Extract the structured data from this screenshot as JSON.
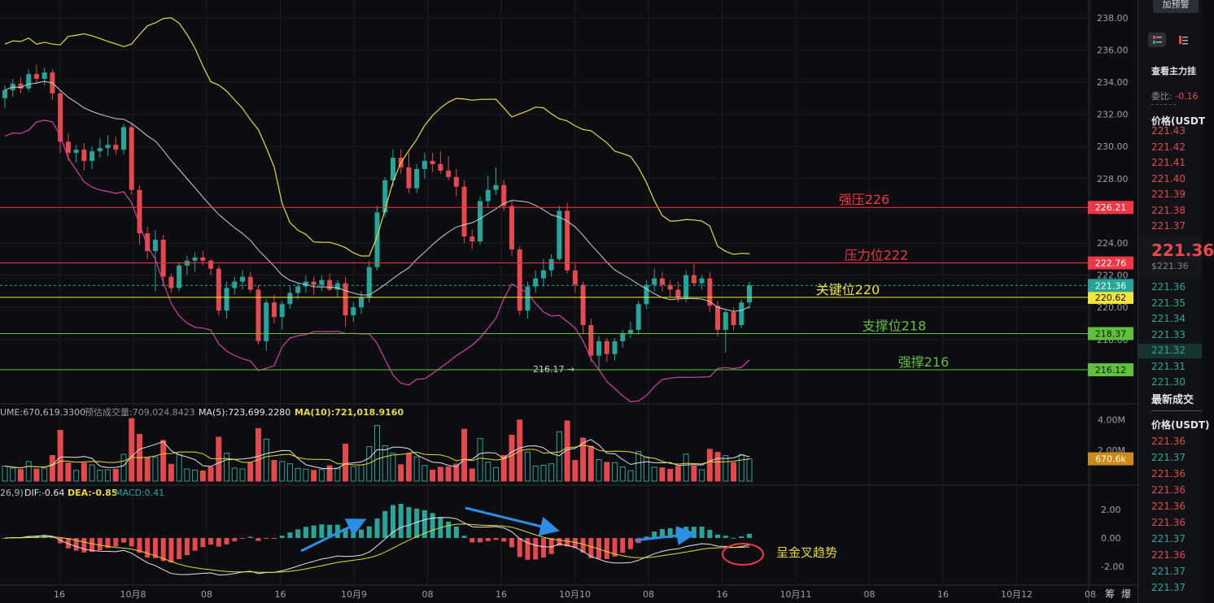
{
  "chart_data": {
    "type": "candlestick",
    "price_axis": {
      "min": 214.0,
      "max": 239.0,
      "ticks": [
        "238.00",
        "236.00",
        "234.00",
        "232.00",
        "230.00",
        "228.00",
        "226.00",
        "224.00",
        "222.00",
        "220.00",
        "218.00"
      ]
    },
    "time_axis": {
      "labels": [
        "16",
        "10月8",
        "08",
        "16",
        "10月9",
        "08",
        "16",
        "10月10",
        "08",
        "16",
        "10月11",
        "08",
        "16",
        "10月12",
        "08"
      ]
    },
    "candles_ohlc": [
      [
        233.0,
        233.8,
        232.4,
        233.5
      ],
      [
        233.5,
        234.2,
        233.1,
        233.9
      ],
      [
        233.9,
        234.3,
        233.3,
        233.6
      ],
      [
        233.6,
        234.8,
        233.4,
        234.5
      ],
      [
        234.5,
        235.1,
        233.9,
        234.2
      ],
      [
        234.2,
        234.9,
        233.8,
        234.6
      ],
      [
        234.6,
        234.8,
        232.9,
        233.3
      ],
      [
        233.3,
        233.5,
        229.6,
        230.3
      ],
      [
        230.3,
        230.8,
        229.1,
        229.6
      ],
      [
        229.6,
        230.1,
        229.0,
        229.8
      ],
      [
        229.8,
        230.2,
        228.5,
        229.1
      ],
      [
        229.1,
        230.0,
        228.6,
        229.7
      ],
      [
        229.7,
        230.5,
        229.3,
        229.9
      ],
      [
        229.9,
        230.7,
        229.4,
        230.1
      ],
      [
        230.1,
        230.6,
        229.5,
        229.8
      ],
      [
        229.8,
        231.4,
        229.5,
        231.2
      ],
      [
        231.2,
        231.4,
        227.0,
        227.3
      ],
      [
        227.3,
        227.6,
        223.9,
        224.6
      ],
      [
        224.6,
        225.0,
        223.0,
        223.5
      ],
      [
        223.5,
        224.8,
        221.0,
        224.2
      ],
      [
        224.2,
        224.5,
        221.3,
        221.9
      ],
      [
        221.9,
        222.1,
        220.9,
        221.2
      ],
      [
        221.2,
        222.8,
        221.0,
        222.6
      ],
      [
        222.6,
        223.2,
        222.0,
        222.9
      ],
      [
        222.9,
        223.4,
        222.2,
        223.1
      ],
      [
        223.1,
        223.5,
        222.6,
        222.9
      ],
      [
        222.9,
        223.0,
        222.0,
        222.4
      ],
      [
        222.4,
        222.6,
        219.5,
        219.8
      ],
      [
        219.8,
        221.6,
        219.3,
        221.2
      ],
      [
        221.2,
        221.9,
        220.8,
        221.6
      ],
      [
        221.6,
        222.3,
        221.1,
        221.9
      ],
      [
        221.9,
        222.2,
        220.9,
        221.1
      ],
      [
        221.1,
        221.4,
        217.7,
        217.9
      ],
      [
        217.9,
        220.5,
        217.3,
        220.3
      ],
      [
        220.3,
        220.8,
        219.0,
        219.4
      ],
      [
        219.4,
        220.4,
        218.6,
        220.2
      ],
      [
        220.2,
        221.3,
        219.9,
        220.9
      ],
      [
        220.9,
        221.5,
        220.5,
        221.3
      ],
      [
        221.3,
        222.0,
        220.9,
        221.6
      ],
      [
        221.6,
        221.9,
        220.8,
        221.4
      ],
      [
        221.4,
        222.0,
        221.0,
        221.7
      ],
      [
        221.7,
        222.1,
        221.0,
        221.1
      ],
      [
        221.1,
        221.7,
        220.6,
        221.5
      ],
      [
        221.5,
        221.9,
        218.8,
        219.5
      ],
      [
        219.5,
        220.3,
        219.1,
        220.0
      ],
      [
        220.0,
        221.0,
        219.6,
        220.6
      ],
      [
        220.6,
        222.9,
        220.3,
        222.5
      ],
      [
        222.5,
        226.3,
        222.3,
        225.9
      ],
      [
        225.9,
        228.1,
        225.6,
        227.9
      ],
      [
        227.9,
        229.8,
        227.5,
        229.3
      ],
      [
        229.3,
        229.8,
        228.3,
        228.7
      ],
      [
        228.7,
        229.6,
        227.1,
        227.4
      ],
      [
        227.4,
        228.9,
        227.1,
        228.6
      ],
      [
        228.6,
        229.6,
        228.0,
        229.1
      ],
      [
        229.1,
        229.6,
        228.4,
        228.9
      ],
      [
        228.9,
        229.7,
        228.3,
        228.5
      ],
      [
        228.5,
        229.4,
        227.9,
        228.1
      ],
      [
        228.1,
        228.6,
        226.9,
        227.5
      ],
      [
        227.5,
        227.9,
        224.0,
        224.4
      ],
      [
        224.4,
        224.8,
        223.6,
        224.1
      ],
      [
        224.1,
        226.9,
        223.9,
        226.6
      ],
      [
        226.6,
        228.2,
        226.2,
        227.3
      ],
      [
        227.3,
        228.7,
        227.0,
        227.6
      ],
      [
        227.6,
        227.9,
        226.0,
        226.3
      ],
      [
        226.3,
        226.6,
        223.2,
        223.6
      ],
      [
        223.6,
        223.8,
        219.5,
        219.8
      ],
      [
        219.8,
        221.6,
        219.3,
        221.3
      ],
      [
        221.3,
        222.3,
        220.9,
        221.8
      ],
      [
        221.8,
        223.0,
        221.3,
        222.3
      ],
      [
        222.3,
        223.3,
        221.9,
        223.0
      ],
      [
        223.0,
        226.3,
        222.9,
        226.0
      ],
      [
        226.0,
        226.5,
        222.1,
        222.3
      ],
      [
        222.3,
        222.7,
        220.9,
        221.4
      ],
      [
        221.4,
        221.6,
        218.4,
        218.9
      ],
      [
        218.9,
        219.3,
        216.6,
        217.0
      ],
      [
        217.0,
        218.2,
        216.1,
        217.9
      ],
      [
        217.9,
        218.1,
        216.6,
        217.1
      ],
      [
        217.1,
        218.1,
        216.7,
        217.9
      ],
      [
        217.9,
        218.6,
        217.5,
        218.4
      ],
      [
        218.4,
        219.1,
        218.1,
        218.6
      ],
      [
        218.6,
        220.4,
        218.3,
        220.2
      ],
      [
        220.2,
        221.7,
        219.9,
        221.4
      ],
      [
        221.4,
        222.4,
        221.0,
        221.8
      ],
      [
        221.8,
        222.2,
        221.0,
        221.4
      ],
      [
        221.4,
        221.7,
        220.6,
        221.1
      ],
      [
        221.1,
        221.6,
        220.3,
        220.6
      ],
      [
        220.6,
        222.3,
        220.3,
        222.0
      ],
      [
        222.0,
        222.7,
        221.3,
        221.5
      ],
      [
        221.5,
        222.0,
        221.1,
        221.8
      ],
      [
        221.8,
        222.2,
        219.7,
        220.1
      ],
      [
        220.1,
        220.4,
        218.2,
        218.6
      ],
      [
        218.6,
        219.9,
        217.2,
        219.7
      ],
      [
        219.7,
        220.0,
        218.6,
        218.9
      ],
      [
        218.9,
        220.5,
        218.7,
        220.3
      ],
      [
        220.3,
        221.6,
        219.9,
        221.36
      ]
    ],
    "levels": [
      {
        "price": 226.21,
        "label": "强压226",
        "axis_label": "226.21",
        "color": "#f23645"
      },
      {
        "price": 222.76,
        "label": "压力位222",
        "axis_label": "222.76",
        "color": "#f23645"
      },
      {
        "price": 220.62,
        "label": "关键位220",
        "axis_label": "220.62",
        "color": "#f5e53a"
      },
      {
        "price": 218.37,
        "label": "支撑位218",
        "axis_label": "218.37",
        "color": "#5ec13b"
      },
      {
        "price": 216.12,
        "label": "强撑216",
        "axis_label": "216.12",
        "color": "#5ec13b"
      }
    ],
    "current_price": {
      "price": 221.36,
      "axis_label": "221.36",
      "color": "#26a69a"
    },
    "low_annotation": {
      "text": "216.17 →",
      "price": 216.17
    },
    "volume": {
      "header": {
        "volume": "UME:670,619.3300",
        "forecast": "预估成交量:709,024.8423",
        "ma5": "MA(5):723,699.2280",
        "ma10": "MA(10):721,018.9160"
      },
      "ticks": [
        "4.00M",
        "2.00M"
      ],
      "current_label": "670.6k"
    },
    "macd": {
      "header": {
        "params": "26,9)",
        "dif": "DIF:-0.64",
        "dea": "DEA:-0.85",
        "macd": "MACD:0.41"
      },
      "ticks": [
        "2.00",
        "0.00",
        "-2.00"
      ],
      "annotation": "呈金叉趋势"
    }
  },
  "sidebar": {
    "alert_button": "加预警",
    "orderbook_title": "查看主力挂",
    "ratio_label": "委比:",
    "ratio_value": "-0.16",
    "price_header": "价格(USDT",
    "asks": [
      "221.43",
      "221.42",
      "221.41",
      "221.40",
      "221.39",
      "221.38",
      "221.37"
    ],
    "last_price": "221.36",
    "last_price_usd": "$221.36",
    "bids": [
      "221.36",
      "221.35",
      "221.34",
      "221.33",
      "221.32",
      "221.31",
      "221.30"
    ],
    "trades_title": "最新成交",
    "trades_header": "价格(USDT)",
    "trades": [
      {
        "price": "221.36",
        "side": "sell"
      },
      {
        "price": "221.37",
        "side": "buy"
      },
      {
        "price": "221.36",
        "side": "sell"
      },
      {
        "price": "221.36",
        "side": "sell"
      },
      {
        "price": "221.36",
        "side": "sell"
      },
      {
        "price": "221.36",
        "side": "sell"
      },
      {
        "price": "221.37",
        "side": "buy"
      },
      {
        "price": "221.36",
        "side": "sell"
      },
      {
        "price": "221.37",
        "side": "buy"
      },
      {
        "price": "221.37",
        "side": "buy"
      }
    ],
    "bottom_labels": [
      "筹",
      "爆"
    ]
  },
  "colors": {
    "up": "#26a69a",
    "down": "#e5484d",
    "bg": "#0c0d10",
    "grid": "#1b1d22"
  }
}
